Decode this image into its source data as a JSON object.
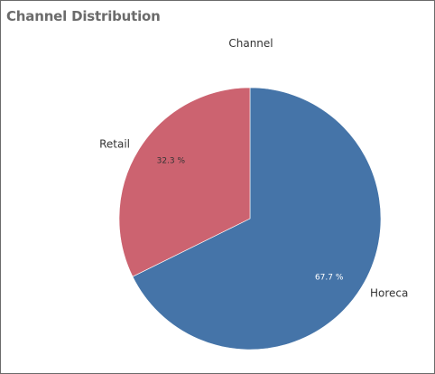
{
  "panel": {
    "title": "Channel Distribution"
  },
  "chart_data": {
    "type": "pie",
    "legend_title": "Channel",
    "slices": [
      {
        "label": "Horeca",
        "value": 67.7,
        "value_label": "67.7 %",
        "color": "#4574a8",
        "text_color": "#ffffff"
      },
      {
        "label": "Retail",
        "value": 32.3,
        "value_label": "32.3 %",
        "color": "#cc6370",
        "text_color": "#333333"
      }
    ],
    "start_angle_deg": 0,
    "direction": "clockwise"
  }
}
